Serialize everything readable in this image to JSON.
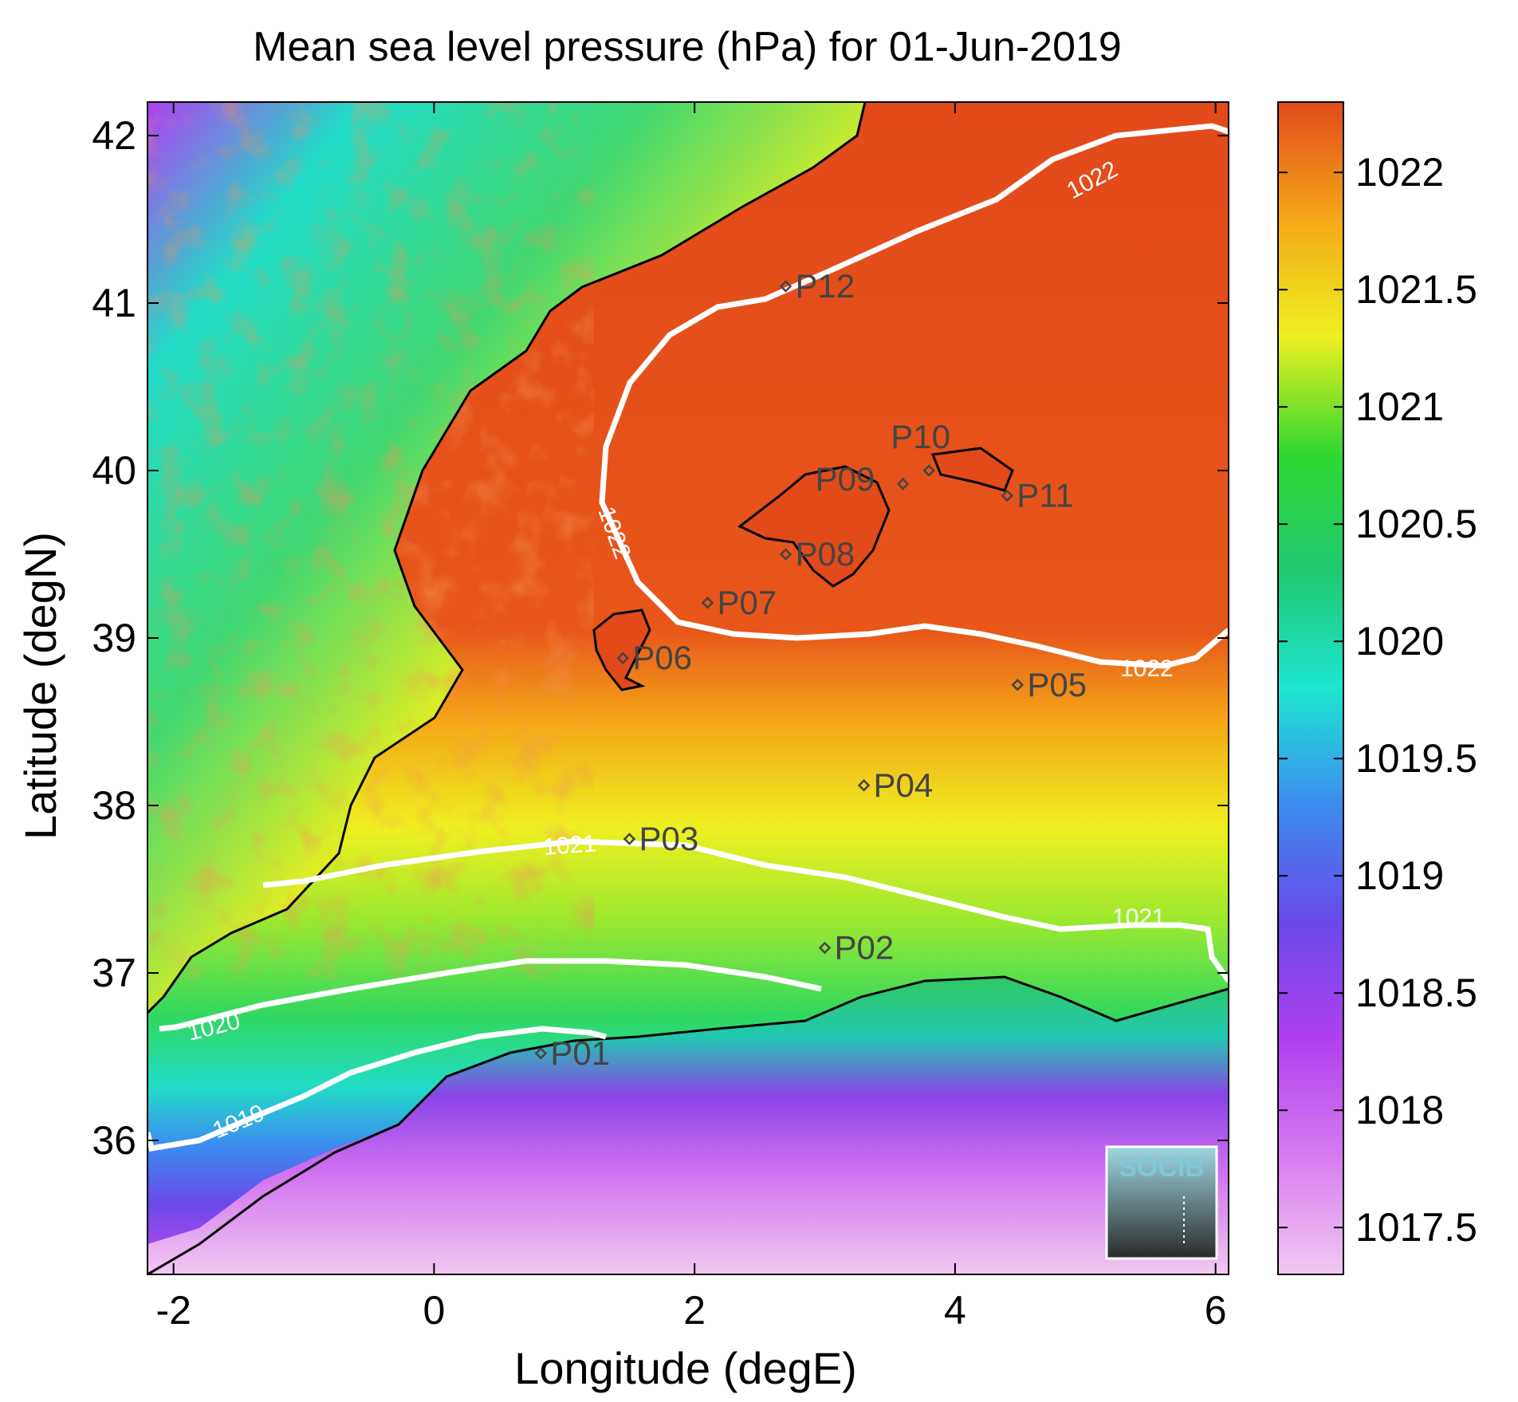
{
  "title": "Mean sea level pressure (hPa) for 01-Jun-2019",
  "xlabel": "Longitude (degE)",
  "ylabel": "Latitude (degN)",
  "logo_text": "SOCIB",
  "chart_data": {
    "type": "heatmap",
    "title": "Mean sea level pressure (hPa) for 01-Jun-2019",
    "xlabel": "Longitude (degE)",
    "ylabel": "Latitude (degN)",
    "xlim": [
      -2.2,
      6.1
    ],
    "ylim": [
      35.2,
      42.2
    ],
    "x_ticks": [
      -2,
      0,
      2,
      4,
      6
    ],
    "x_tick_labels": [
      "-2",
      "0",
      "2",
      "4",
      "6"
    ],
    "y_ticks": [
      36,
      37,
      38,
      39,
      40,
      41,
      42
    ],
    "y_tick_labels": [
      "36",
      "37",
      "38",
      "39",
      "40",
      "41",
      "42"
    ],
    "colorbar": {
      "range": [
        1017.3,
        1022.3
      ],
      "ticks": [
        1017.5,
        1018,
        1018.5,
        1019,
        1019.5,
        1020,
        1020.5,
        1021,
        1021.5,
        1022
      ],
      "tick_labels": [
        "1017.5",
        "1018",
        "1018.5",
        "1019",
        "1019.5",
        "1020",
        "1020.5",
        "1021",
        "1021.5",
        "1022"
      ],
      "colors": [
        "#f2c8f2",
        "#c450ee",
        "#7a44e6",
        "#3c8cf0",
        "#1ee6d2",
        "#20c870",
        "#30d830",
        "#eef020",
        "#f4a818",
        "#e24a1a"
      ]
    },
    "contours": [
      {
        "level": 1019,
        "label": "1019"
      },
      {
        "level": 1020,
        "label": "1020"
      },
      {
        "level": 1021,
        "label": "1021"
      },
      {
        "level": 1022,
        "label": "1022"
      }
    ],
    "stations": [
      {
        "name": "P01",
        "lon": 0.82,
        "lat": 36.52
      },
      {
        "name": "P02",
        "lon": 3.0,
        "lat": 37.15
      },
      {
        "name": "P03",
        "lon": 1.5,
        "lat": 37.8
      },
      {
        "name": "P04",
        "lon": 3.3,
        "lat": 38.12
      },
      {
        "name": "P05",
        "lon": 4.48,
        "lat": 38.72
      },
      {
        "name": "P06",
        "lon": 1.45,
        "lat": 38.88
      },
      {
        "name": "P07",
        "lon": 2.1,
        "lat": 39.21
      },
      {
        "name": "P08",
        "lon": 2.7,
        "lat": 39.5
      },
      {
        "name": "P09",
        "lon": 3.6,
        "lat": 39.92
      },
      {
        "name": "P10",
        "lon": 3.8,
        "lat": 40.0
      },
      {
        "name": "P11",
        "lon": 4.4,
        "lat": 39.85
      },
      {
        "name": "P12",
        "lon": 2.7,
        "lat": 41.1
      }
    ]
  }
}
